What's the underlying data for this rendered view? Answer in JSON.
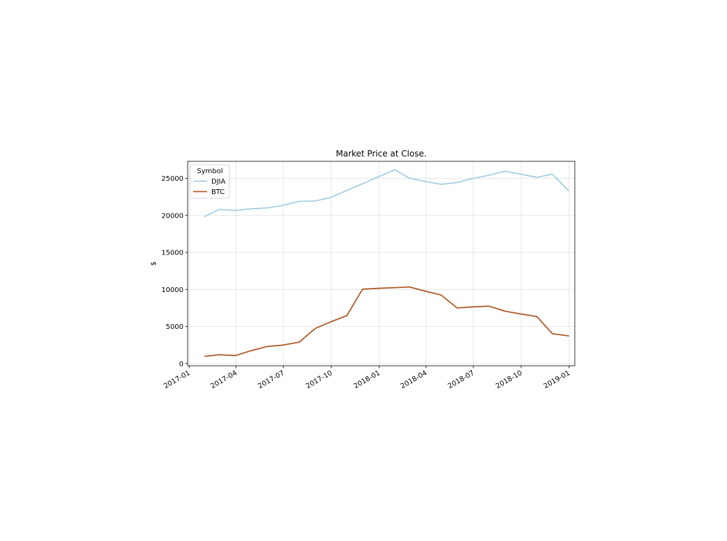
{
  "chart_data": {
    "type": "line",
    "title": "Market Price at Close.",
    "xlabel": "",
    "ylabel": "$",
    "x_tick_labels": [
      "2017-01",
      "2017-04",
      "2017-07",
      "2017-10",
      "2018-01",
      "2018-04",
      "2018-07",
      "2018-10",
      "2019-01"
    ],
    "y_tick_labels": [
      "0",
      "5000",
      "10000",
      "15000",
      "20000",
      "25000"
    ],
    "y_ticks": [
      0,
      5000,
      10000,
      15000,
      20000,
      25000
    ],
    "xlim": [
      "2016-12-29",
      "2019-01-12"
    ],
    "ylim": [
      -300,
      27300
    ],
    "grid": true,
    "legend": {
      "title": "Symbol",
      "placement": "upper-left"
    },
    "x": [
      "2017-01-31",
      "2017-02-28",
      "2017-03-31",
      "2017-04-28",
      "2017-05-31",
      "2017-06-30",
      "2017-07-31",
      "2017-08-31",
      "2017-09-29",
      "2017-10-31",
      "2017-11-30",
      "2017-12-29",
      "2018-01-31",
      "2018-02-28",
      "2018-03-29",
      "2018-04-30",
      "2018-05-31",
      "2018-06-29",
      "2018-07-31",
      "2018-08-31",
      "2018-09-28",
      "2018-10-31",
      "2018-11-30",
      "2018-12-31"
    ],
    "series": [
      {
        "name": "DJIA",
        "color": "#a6cee3",
        "values": [
          19860,
          20810,
          20660,
          20880,
          21010,
          21350,
          21890,
          21950,
          22400,
          23380,
          24270,
          25170,
          26150,
          25030,
          24590,
          24200,
          24440,
          24960,
          25420,
          25960,
          25600,
          25140,
          25560,
          23330
        ]
      },
      {
        "name": "BTC",
        "color": "#b15928",
        "values": [
          970,
          1190,
          1080,
          1700,
          2300,
          2490,
          2880,
          4730,
          5600,
          6470,
          10030,
          10150,
          10250,
          10340,
          9800,
          9250,
          7500,
          7650,
          7750,
          7070,
          6720,
          6350,
          4020,
          3740
        ]
      }
    ]
  }
}
